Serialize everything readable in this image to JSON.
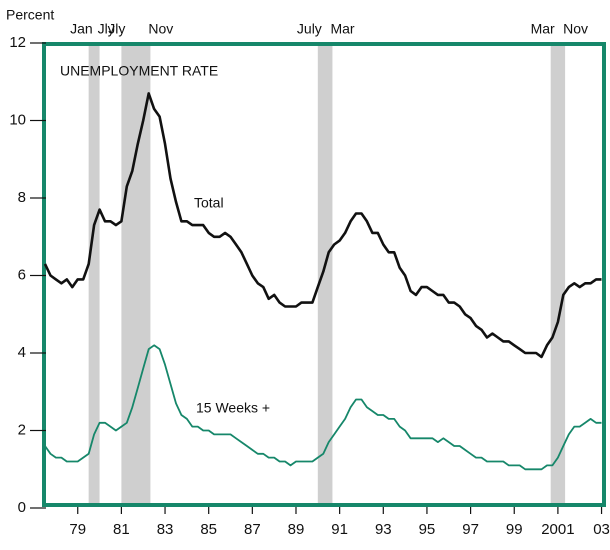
{
  "chart_data": {
    "type": "line",
    "title": "UNEMPLOYMENT RATE",
    "y_label": "Percent",
    "xlim": [
      1978,
      2003.75
    ],
    "ylim": [
      0,
      12
    ],
    "yticks": [
      0,
      2,
      4,
      6,
      8,
      10,
      12
    ],
    "xticks": [
      {
        "value": 1979.5,
        "label": "79"
      },
      {
        "value": 1981.5,
        "label": "81"
      },
      {
        "value": 1983.5,
        "label": "83"
      },
      {
        "value": 1985.5,
        "label": "85"
      },
      {
        "value": 1987.5,
        "label": "87"
      },
      {
        "value": 1989.5,
        "label": "89"
      },
      {
        "value": 1991.5,
        "label": "91"
      },
      {
        "value": 1993.5,
        "label": "93"
      },
      {
        "value": 1995.5,
        "label": "95"
      },
      {
        "value": 1997.5,
        "label": "97"
      },
      {
        "value": 1999.5,
        "label": "99"
      },
      {
        "value": 2001.5,
        "label": "2001"
      },
      {
        "value": 2003.5,
        "label": "03"
      }
    ],
    "recessions": [
      {
        "start": 1980.0,
        "end": 1980.5,
        "labels": [
          "Jan",
          "Jly"
        ]
      },
      {
        "start": 1981.5,
        "end": 1982.83,
        "labels": [
          "Jly",
          "Nov"
        ]
      },
      {
        "start": 1990.5,
        "end": 1991.17,
        "labels": [
          "July",
          "Mar"
        ]
      },
      {
        "start": 2001.17,
        "end": 2001.83,
        "labels": [
          "Mar",
          "Nov"
        ]
      }
    ],
    "x": [
      1978,
      1978.25,
      1978.5,
      1978.75,
      1979,
      1979.25,
      1979.5,
      1979.75,
      1980,
      1980.25,
      1980.5,
      1980.75,
      1981,
      1981.25,
      1981.5,
      1981.75,
      1982,
      1982.25,
      1982.5,
      1982.75,
      1983,
      1983.25,
      1983.5,
      1983.75,
      1984,
      1984.25,
      1984.5,
      1984.75,
      1985,
      1985.25,
      1985.5,
      1985.75,
      1986,
      1986.25,
      1986.5,
      1986.75,
      1987,
      1987.25,
      1987.5,
      1987.75,
      1988,
      1988.25,
      1988.5,
      1988.75,
      1989,
      1989.25,
      1989.5,
      1989.75,
      1990,
      1990.25,
      1990.5,
      1990.75,
      1991,
      1991.25,
      1991.5,
      1991.75,
      1992,
      1992.25,
      1992.5,
      1992.75,
      1993,
      1993.25,
      1993.5,
      1993.75,
      1994,
      1994.25,
      1994.5,
      1994.75,
      1995,
      1995.25,
      1995.5,
      1995.75,
      1996,
      1996.25,
      1996.5,
      1996.75,
      1997,
      1997.25,
      1997.5,
      1997.75,
      1998,
      1998.25,
      1998.5,
      1998.75,
      1999,
      1999.25,
      1999.5,
      1999.75,
      2000,
      2000.25,
      2000.5,
      2000.75,
      2001,
      2001.25,
      2001.5,
      2001.75,
      2002,
      2002.25,
      2002.5,
      2002.75,
      2003,
      2003.25,
      2003.5
    ],
    "series": [
      {
        "name": "Total",
        "color": "#111111",
        "values": [
          6.3,
          6.0,
          5.9,
          5.8,
          5.9,
          5.7,
          5.9,
          5.9,
          6.3,
          7.3,
          7.7,
          7.4,
          7.4,
          7.3,
          7.4,
          8.3,
          8.7,
          9.4,
          10.0,
          10.7,
          10.3,
          10.1,
          9.4,
          8.5,
          7.9,
          7.4,
          7.4,
          7.3,
          7.3,
          7.3,
          7.1,
          7.0,
          7.0,
          7.1,
          7.0,
          6.8,
          6.6,
          6.3,
          6.0,
          5.8,
          5.7,
          5.4,
          5.5,
          5.3,
          5.2,
          5.2,
          5.2,
          5.3,
          5.3,
          5.3,
          5.7,
          6.1,
          6.6,
          6.8,
          6.9,
          7.1,
          7.4,
          7.6,
          7.6,
          7.4,
          7.1,
          7.1,
          6.8,
          6.6,
          6.6,
          6.2,
          6.0,
          5.6,
          5.5,
          5.7,
          5.7,
          5.6,
          5.5,
          5.5,
          5.3,
          5.3,
          5.2,
          5.0,
          4.9,
          4.7,
          4.6,
          4.4,
          4.5,
          4.4,
          4.3,
          4.3,
          4.2,
          4.1,
          4.0,
          4.0,
          4.0,
          3.9,
          4.2,
          4.4,
          4.8,
          5.5,
          5.7,
          5.8,
          5.7,
          5.8,
          5.8,
          5.9,
          5.9
        ]
      },
      {
        "name": "15 Weeks +",
        "color": "#16876a",
        "values": [
          1.6,
          1.4,
          1.3,
          1.3,
          1.2,
          1.2,
          1.2,
          1.3,
          1.4,
          1.9,
          2.2,
          2.2,
          2.1,
          2.0,
          2.1,
          2.2,
          2.6,
          3.1,
          3.6,
          4.1,
          4.2,
          4.1,
          3.7,
          3.2,
          2.7,
          2.4,
          2.3,
          2.1,
          2.1,
          2.0,
          2.0,
          1.9,
          1.9,
          1.9,
          1.9,
          1.8,
          1.7,
          1.6,
          1.5,
          1.4,
          1.4,
          1.3,
          1.3,
          1.2,
          1.2,
          1.1,
          1.2,
          1.2,
          1.2,
          1.2,
          1.3,
          1.4,
          1.7,
          1.9,
          2.1,
          2.3,
          2.6,
          2.8,
          2.8,
          2.6,
          2.5,
          2.4,
          2.4,
          2.3,
          2.3,
          2.1,
          2.0,
          1.8,
          1.8,
          1.8,
          1.8,
          1.8,
          1.7,
          1.8,
          1.7,
          1.6,
          1.6,
          1.5,
          1.4,
          1.3,
          1.3,
          1.2,
          1.2,
          1.2,
          1.2,
          1.1,
          1.1,
          1.1,
          1.0,
          1.0,
          1.0,
          1.0,
          1.1,
          1.1,
          1.3,
          1.6,
          1.9,
          2.1,
          2.1,
          2.2,
          2.3,
          2.2,
          2.2
        ]
      }
    ]
  }
}
